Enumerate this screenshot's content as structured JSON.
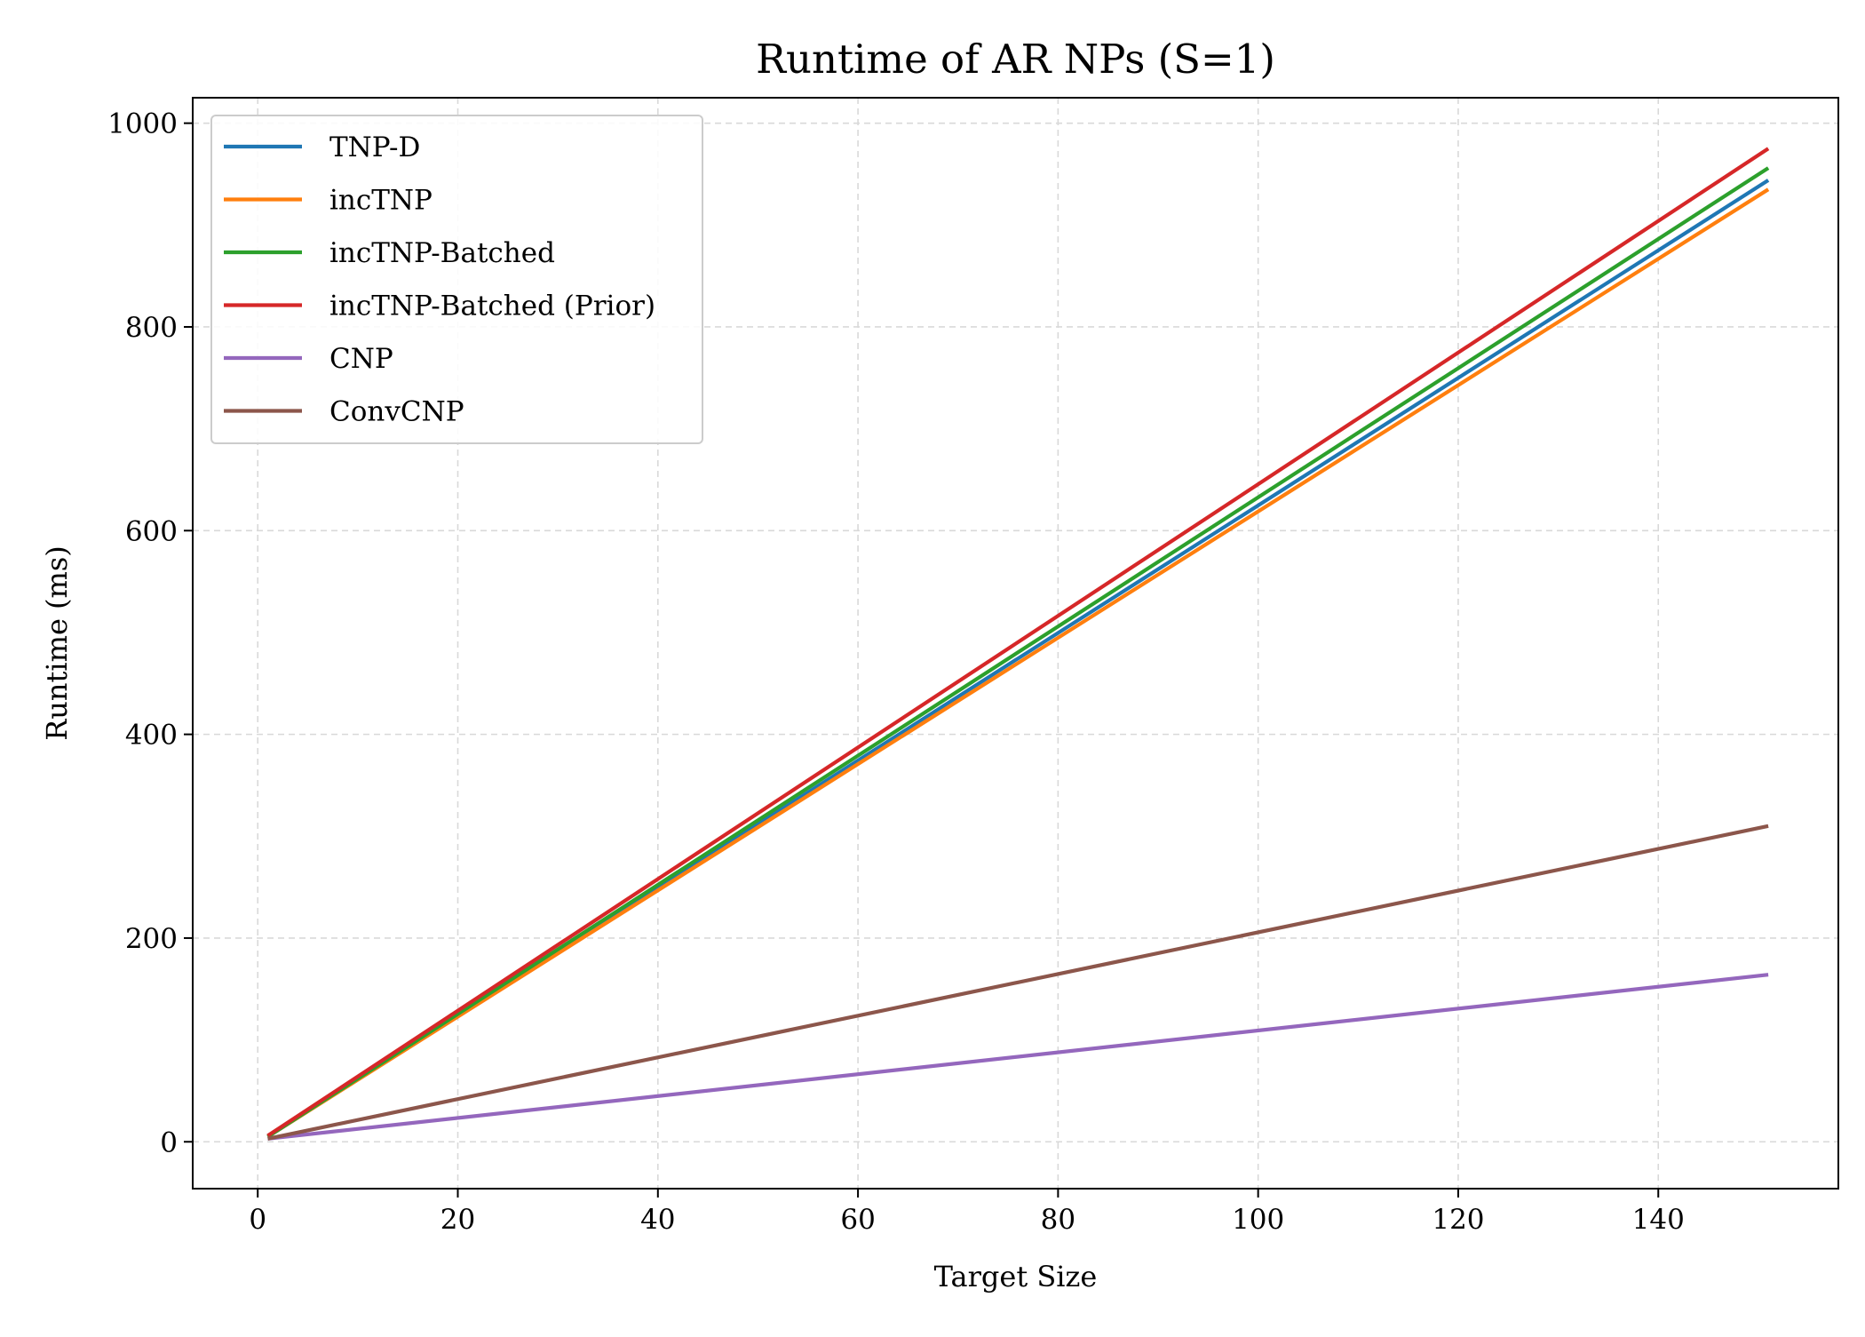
{
  "chart_data": {
    "type": "line",
    "title": "Runtime of AR NPs (S=1)",
    "xlabel": "Target Size",
    "ylabel": "Runtime (ms)",
    "xlim": [
      -6.5,
      158
    ],
    "ylim": [
      -46,
      1025
    ],
    "xticks": [
      0,
      20,
      40,
      60,
      80,
      100,
      120,
      140
    ],
    "yticks": [
      0,
      200,
      400,
      600,
      800,
      1000
    ],
    "grid": true,
    "legend_position": "upper-left",
    "series": [
      {
        "name": "TNP-D",
        "color": "#1f77b4",
        "x": [
          1,
          151
        ],
        "y": [
          5,
          944
        ]
      },
      {
        "name": "incTNP",
        "color": "#ff7f0e",
        "x": [
          1,
          151
        ],
        "y": [
          5,
          935
        ]
      },
      {
        "name": "incTNP-Batched",
        "color": "#2ca02c",
        "x": [
          1,
          151
        ],
        "y": [
          5,
          956
        ]
      },
      {
        "name": "incTNP-Batched (Prior)",
        "color": "#d62728",
        "x": [
          1,
          151
        ],
        "y": [
          6,
          975
        ]
      },
      {
        "name": "CNP",
        "color": "#9467bd",
        "x": [
          1,
          151
        ],
        "y": [
          3,
          164
        ]
      },
      {
        "name": "ConvCNP",
        "color": "#8c564b",
        "x": [
          1,
          151
        ],
        "y": [
          3,
          310
        ]
      }
    ]
  }
}
